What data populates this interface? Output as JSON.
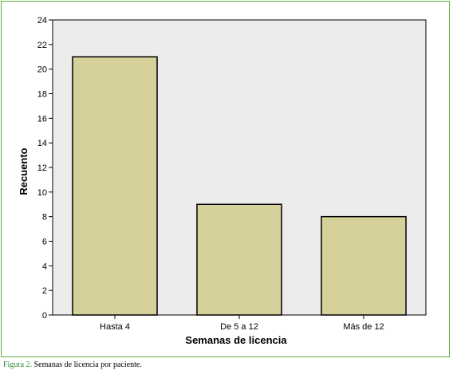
{
  "colors": {
    "frame_border": "#5fae3c",
    "plot_background": "#ececec",
    "bar_fill": "#d6d19a",
    "bar_stroke": "#000000",
    "caption_label": "#2e8b3a"
  },
  "chart_data": {
    "type": "bar",
    "categories": [
      "Hasta 4",
      "De 5 a 12",
      "Más de 12"
    ],
    "values": [
      21,
      9,
      8
    ],
    "xlabel": "Semanas de licencia",
    "ylabel": "Recuento",
    "ylim": [
      0,
      24
    ],
    "yticks": [
      0,
      2,
      4,
      6,
      8,
      10,
      12,
      14,
      16,
      18,
      20,
      22,
      24
    ],
    "grid": false,
    "legend": "none"
  },
  "caption": {
    "label": "Figura 2.",
    "text": "Semanas de licencia por paciente."
  }
}
